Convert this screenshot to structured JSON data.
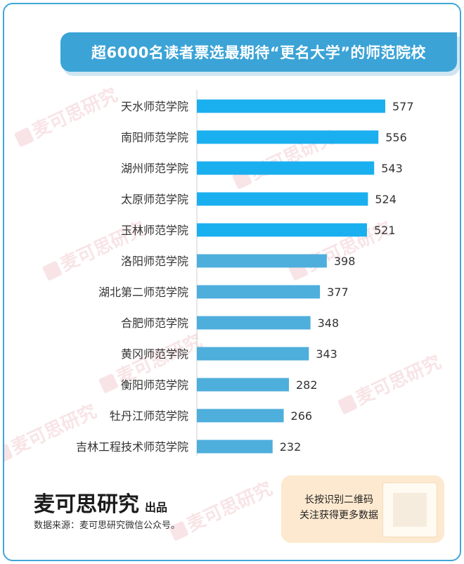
{
  "title": "超6000名读者票选最期待“更名大学”的师范院校",
  "brand": {
    "name": "麦可思研究",
    "suffix": "出品"
  },
  "source": "数据来源：麦可思研究微信公众号。",
  "qr_card": {
    "line1": "长按识别二维码",
    "line2": "关注获得更多数据"
  },
  "watermark": "麦可思研究",
  "colors": {
    "accent": "#3ba3d6",
    "bar_top": "#1aafef",
    "bar_rest": "#4eaedc",
    "card": "#fde9cf"
  },
  "chart_data": {
    "type": "bar",
    "orientation": "horizontal",
    "title": "超6000名读者票选最期待“更名大学”的师范院校",
    "categories": [
      "天水师范学院",
      "南阳师范学院",
      "湖州师范学院",
      "太原师范学院",
      "玉林师范学院",
      "洛阳师范学院",
      "湖北第二师范学院",
      "合肥师范学院",
      "黄冈师范学院",
      "衡阳师范学院",
      "牡丹江师范学院",
      "吉林工程技术师范学院"
    ],
    "values": [
      577,
      556,
      543,
      524,
      521,
      398,
      377,
      348,
      343,
      282,
      266,
      232
    ],
    "xlim": [
      0,
      600
    ],
    "data_labels": true,
    "grid": false,
    "legend": "none"
  }
}
